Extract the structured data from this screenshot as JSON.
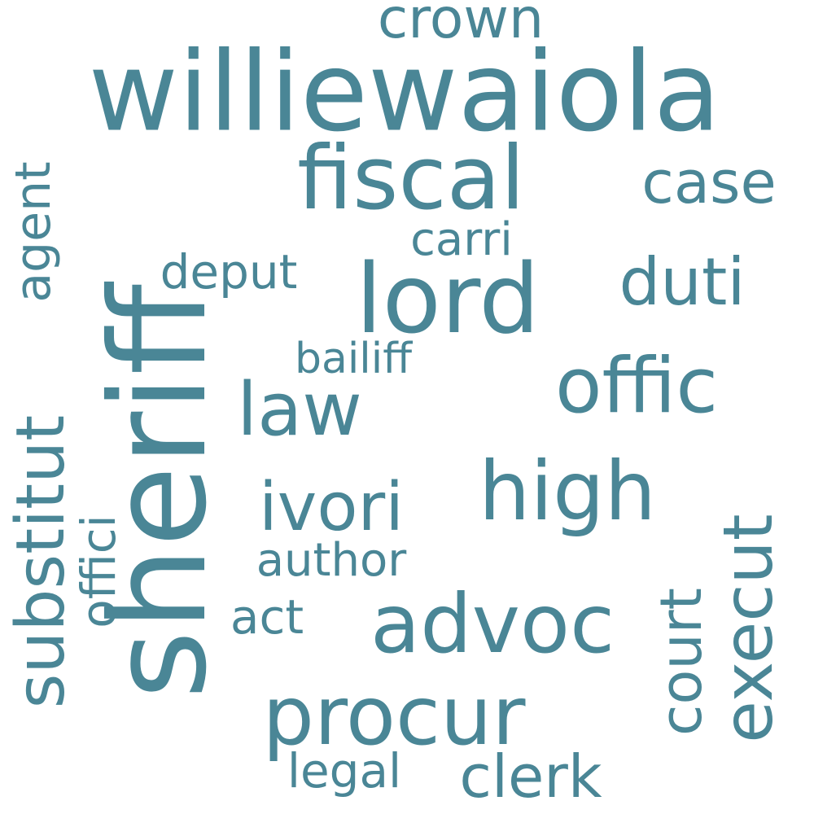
{
  "word_cloud": {
    "text_color": "#4a8696",
    "background_color": "#ffffff",
    "words": {
      "williewaiola": "williewaiola",
      "sheriff": "sheriff",
      "fiscal": "fiscal",
      "lord": "lord",
      "substitut": "substitut",
      "offic": "offic",
      "advoc": "advoc",
      "procur": "procur",
      "high": "high",
      "execut": "execut",
      "law": "law",
      "ivori": "ivori",
      "duti": "duti",
      "case": "case",
      "court": "court",
      "crown": "crown",
      "clerk": "clerk",
      "agent": "agent",
      "offici": "offici",
      "deput": "deput",
      "carri": "carri",
      "bailiff": "bailiff",
      "author": "author",
      "act": "act",
      "legal": "legal"
    }
  }
}
